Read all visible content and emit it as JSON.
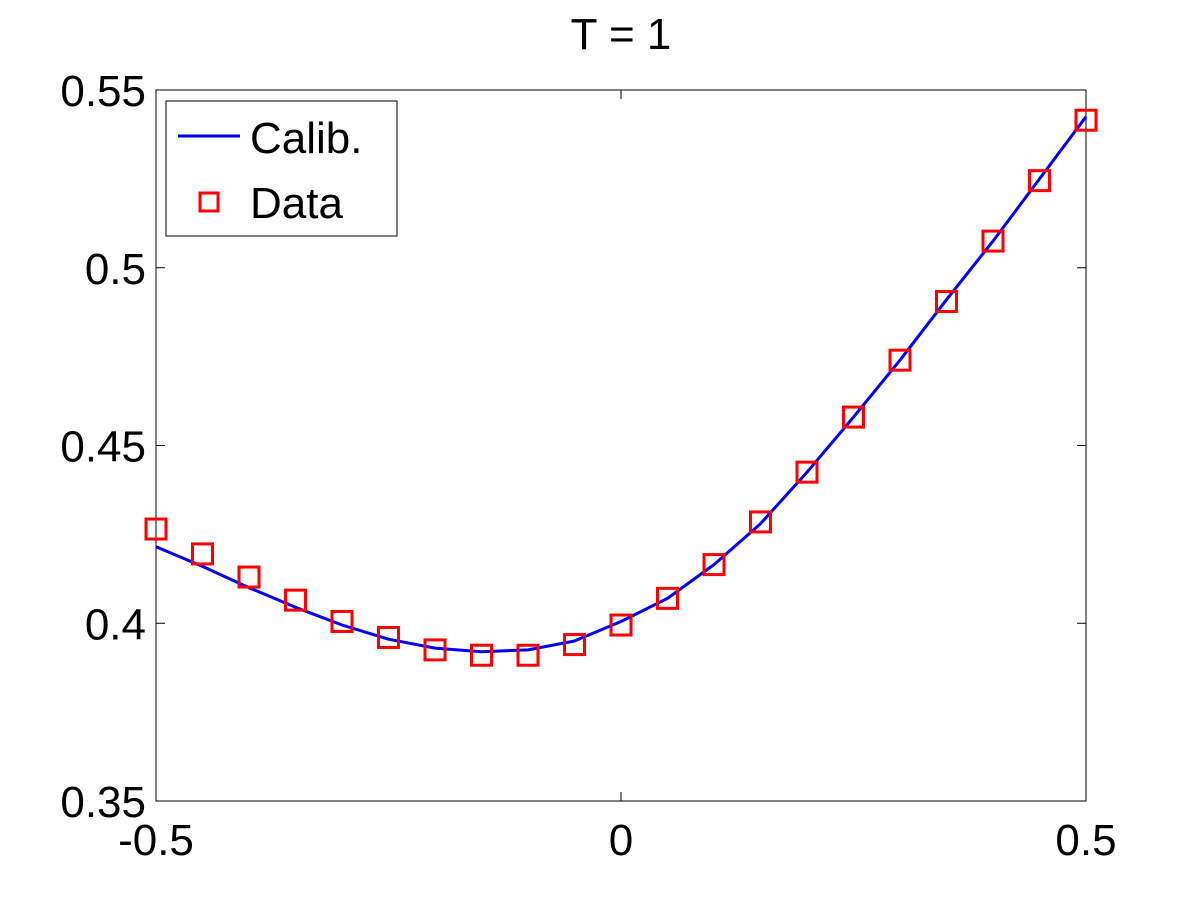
{
  "chart_data": {
    "type": "line",
    "title": "T = 1",
    "xlabel": "",
    "ylabel": "",
    "xlim": [
      -0.5,
      0.5
    ],
    "ylim": [
      0.35,
      0.55
    ],
    "xticks": [
      -0.5,
      0,
      0.5
    ],
    "xtick_labels": [
      "-0.5",
      "0",
      "0.5"
    ],
    "yticks": [
      0.35,
      0.4,
      0.45,
      0.5,
      0.55
    ],
    "ytick_labels": [
      "0.35",
      "0.4",
      "0.45",
      "0.5",
      "0.55"
    ],
    "grid": false,
    "legend_position": "top-left",
    "series": [
      {
        "name": "Calib.",
        "style": "line",
        "color": "#0000ff",
        "x": [
          -0.5,
          -0.45,
          -0.4,
          -0.35,
          -0.3,
          -0.25,
          -0.2,
          -0.15,
          -0.1,
          -0.05,
          0.0,
          0.05,
          0.1,
          0.15,
          0.2,
          0.25,
          0.3,
          0.35,
          0.4,
          0.45,
          0.5
        ],
        "y": [
          0.4215,
          0.416,
          0.41,
          0.4045,
          0.3995,
          0.3955,
          0.393,
          0.392,
          0.3925,
          0.395,
          0.4005,
          0.407,
          0.4165,
          0.428,
          0.4425,
          0.458,
          0.474,
          0.491,
          0.5075,
          0.525,
          0.5425
        ]
      },
      {
        "name": "Data",
        "style": "square-marker",
        "color": "#ff0000",
        "x": [
          -0.5,
          -0.45,
          -0.4,
          -0.35,
          -0.3,
          -0.25,
          -0.2,
          -0.15,
          -0.1,
          -0.05,
          0.0,
          0.05,
          0.1,
          0.15,
          0.2,
          0.25,
          0.3,
          0.35,
          0.4,
          0.45,
          0.5
        ],
        "y": [
          0.4265,
          0.4195,
          0.413,
          0.4065,
          0.4005,
          0.396,
          0.3925,
          0.391,
          0.391,
          0.394,
          0.3995,
          0.407,
          0.4165,
          0.4285,
          0.4425,
          0.458,
          0.474,
          0.4905,
          0.5075,
          0.5245,
          0.5415
        ]
      }
    ]
  }
}
